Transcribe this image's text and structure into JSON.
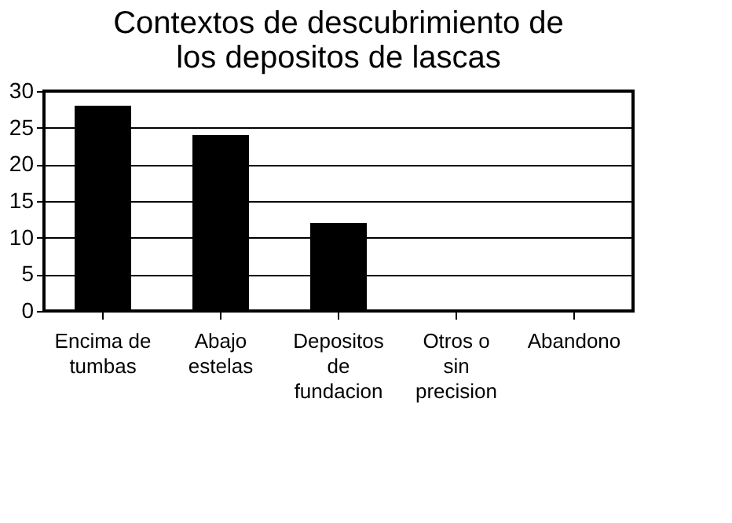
{
  "chart_data": {
    "type": "bar",
    "title": "Contextos de descubrimiento de los depositos de lascas",
    "categories": [
      "Encima de tumbas",
      "Abajo estelas",
      "Depositos de fundacion",
      "Otros o sin precision",
      "Abandono"
    ],
    "values": [
      28,
      24,
      12,
      0,
      0
    ],
    "color": "#000000",
    "ylim": [
      0,
      30
    ],
    "yticks": [
      0,
      5,
      10,
      15,
      20,
      25,
      30
    ],
    "grid": "y"
  }
}
